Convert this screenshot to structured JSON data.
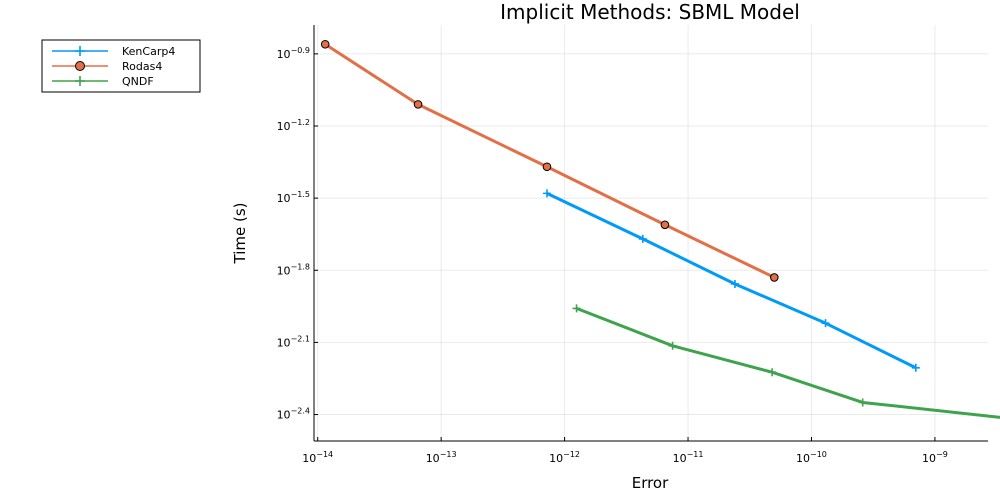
{
  "chart_data": {
    "type": "line",
    "title": "Implicit Methods: SBML Model",
    "xlabel": "Error",
    "ylabel": "Time (s)",
    "xscale": "log10",
    "yscale": "log10",
    "xlim_exponent": [
      -14.03,
      -8.57
    ],
    "ylim_exponent": [
      -2.51,
      -0.78
    ],
    "xticks": [
      {
        "base": "10",
        "exp": "−14"
      },
      {
        "base": "10",
        "exp": "−13"
      },
      {
        "base": "10",
        "exp": "−12"
      },
      {
        "base": "10",
        "exp": "−11"
      },
      {
        "base": "10",
        "exp": "−10"
      },
      {
        "base": "10",
        "exp": "−9"
      }
    ],
    "xtick_values": [
      -14,
      -13,
      -12,
      -11,
      -10,
      -9
    ],
    "yticks": [
      {
        "base": "10",
        "exp": "−0.9"
      },
      {
        "base": "10",
        "exp": "−1.2"
      },
      {
        "base": "10",
        "exp": "−1.5"
      },
      {
        "base": "10",
        "exp": "−1.8"
      },
      {
        "base": "10",
        "exp": "−2.1"
      },
      {
        "base": "10",
        "exp": "−2.4"
      }
    ],
    "ytick_values": [
      -0.9,
      -1.2,
      -1.5,
      -1.8,
      -2.1,
      -2.4
    ],
    "grid": true,
    "legend_position": "outer-top-left",
    "series": [
      {
        "name": "KenCarp4",
        "color": "#009af9",
        "marker": "plus",
        "x": [
          7.2e-13,
          4.3e-12,
          2.4e-11,
          1.3e-10,
          7e-10
        ],
        "y": [
          0.0331,
          0.0214,
          0.0139,
          0.00955,
          0.00623
        ]
      },
      {
        "name": "Rodas4",
        "color": "#e26f46",
        "marker": "circle",
        "x": [
          1.15e-14,
          6.5e-14,
          7.2e-13,
          6.5e-12,
          5e-11
        ],
        "y": [
          0.138,
          0.0776,
          0.0427,
          0.0245,
          0.0148
        ]
      },
      {
        "name": "QNDF",
        "color": "#3da44d",
        "marker": "plus",
        "x": [
          1.25e-12,
          7.5e-12,
          4.8e-11,
          2.6e-10,
          3.8e-09
        ],
        "y": [
          0.011,
          0.00769,
          0.00597,
          0.00447,
          0.00385
        ]
      }
    ]
  }
}
